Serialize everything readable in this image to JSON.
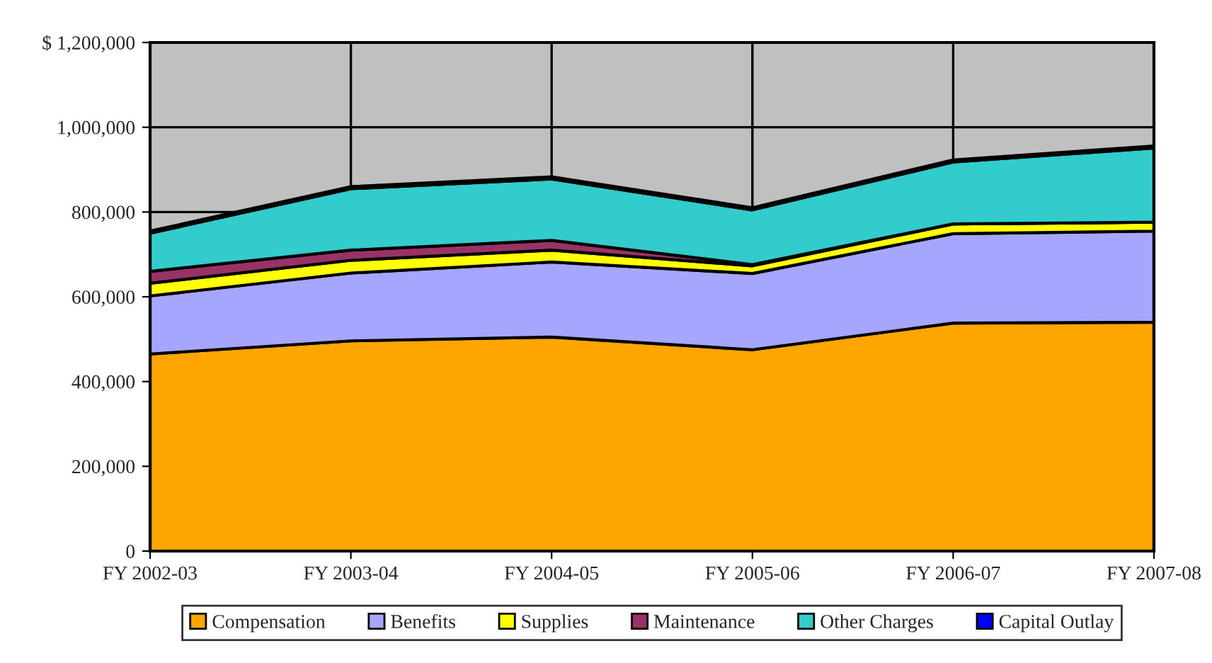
{
  "chart_data": {
    "type": "area",
    "stacked": true,
    "categories": [
      "FY 2002-03",
      "FY 2003-04",
      "FY 2004-05",
      "FY 2005-06",
      "FY 2006-07",
      "FY 2007-08"
    ],
    "series": [
      {
        "name": "Compensation",
        "color": "#ffa500",
        "values": [
          465000,
          496000,
          505000,
          475000,
          538000,
          540000
        ]
      },
      {
        "name": "Benefits",
        "color": "#a6a6ff",
        "values": [
          137000,
          160000,
          177000,
          180000,
          211000,
          215000
        ]
      },
      {
        "name": "Supplies",
        "color": "#ffff00",
        "values": [
          30000,
          30000,
          28000,
          18000,
          23000,
          21000
        ]
      },
      {
        "name": "Maintenance",
        "color": "#993366",
        "values": [
          28000,
          24000,
          23000,
          3000,
          0,
          0
        ]
      },
      {
        "name": "Other Charges",
        "color": "#33cccc",
        "values": [
          90000,
          145000,
          145000,
          129000,
          146000,
          175000
        ]
      },
      {
        "name": "Capital Outlay",
        "color": "#0000ff",
        "values": [
          5000,
          5000,
          5000,
          5000,
          5000,
          5000
        ]
      }
    ],
    "ylim": [
      0,
      1200000
    ],
    "yticks": [
      0,
      {
        "value": 200000,
        "label": "200,000"
      },
      {
        "value": 400000,
        "label": "400,000"
      },
      {
        "value": 600000,
        "label": "600,000"
      },
      {
        "value": 800000,
        "label": "800,000"
      },
      {
        "value": 1000000,
        "label": "1,000,000"
      },
      {
        "value": 1200000,
        "label": "$ 1,200,000"
      }
    ],
    "grid": true,
    "legend": "bottom"
  }
}
